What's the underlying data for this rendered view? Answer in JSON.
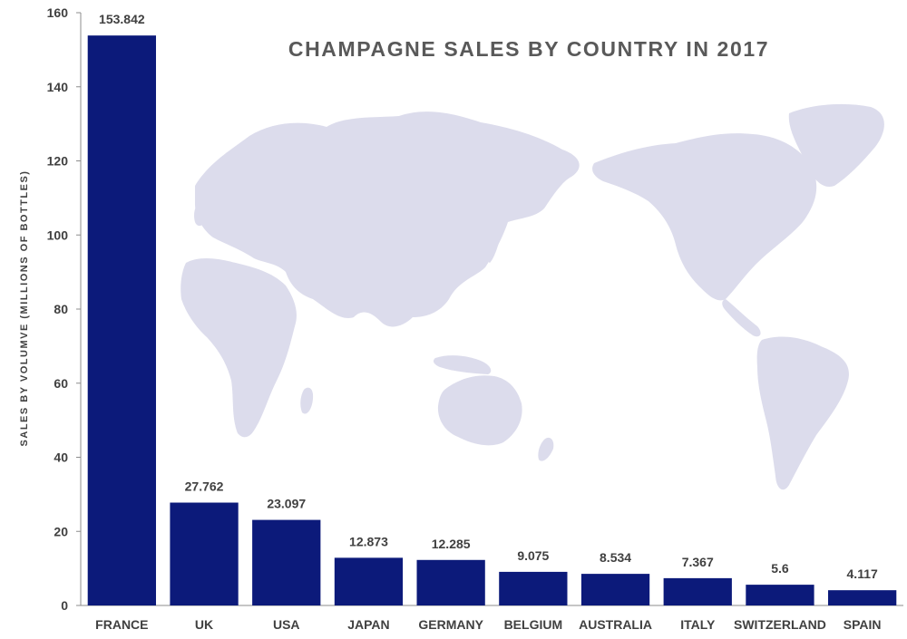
{
  "chart_data": {
    "type": "bar",
    "title": "CHAMPAGNE SALES BY COUNTRY IN 2017",
    "xlabel": "",
    "ylabel": "SALES BY VOLUMVE (MILLIONS OF BOTTLES)",
    "categories": [
      "FRANCE",
      "UK",
      "USA",
      "JAPAN",
      "GERMANY",
      "BELGIUM",
      "AUSTRALIA",
      "ITALY",
      "SWITZERLAND",
      "SPAIN"
    ],
    "values": [
      153.842,
      27.762,
      23.097,
      12.873,
      12.285,
      9.075,
      8.534,
      7.367,
      5.6,
      4.117
    ],
    "data_labels": [
      "153.842",
      "27.762",
      "23.097",
      "12.873",
      "12.285",
      "9.075",
      "8.534",
      "7.367",
      "5.6",
      "4.117"
    ],
    "yticks": [
      "0",
      "20",
      "40",
      "60",
      "80",
      "100",
      "120",
      "140",
      "160"
    ],
    "ylim": [
      0,
      160
    ],
    "grid": false,
    "legend": "none",
    "bar_color": "#0c1a7a",
    "background_image": "world-map"
  }
}
